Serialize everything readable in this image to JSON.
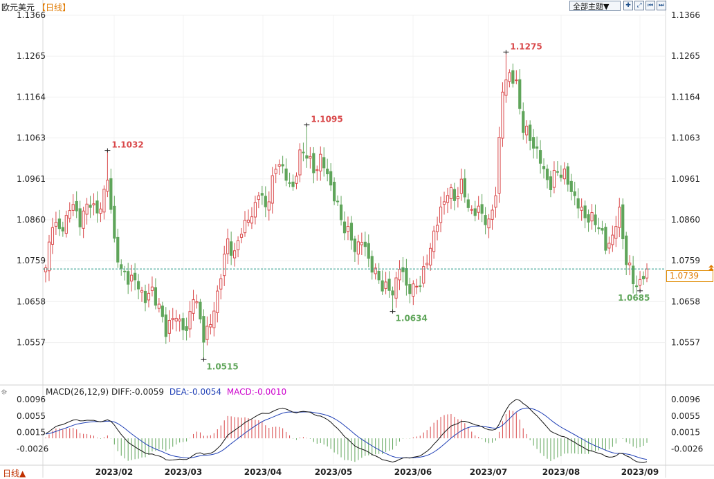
{
  "header": {
    "title": "欧元美元",
    "period": "【日线】",
    "theme_button": "全部主题▼",
    "toolbar_icons": [
      "crosshair-icon",
      "zoom-in-icon",
      "rewind-icon",
      "forward-icon"
    ]
  },
  "footer": {
    "period_button": "日线▲"
  },
  "colors": {
    "up": "#d9484a",
    "down": "#5fa55a",
    "current_line": "#2a9a8a",
    "diff_line": "#111111",
    "dea_line": "#1f3fb5",
    "macd_label": "#cc00cc",
    "tag": "#e07a00"
  },
  "chart_data": {
    "type": "candlestick",
    "instrument": "欧元美元",
    "y_ticks": [
      "1.1366",
      "1.1265",
      "1.1164",
      "1.1063",
      "1.0961",
      "1.0860",
      "1.0759",
      "1.0658",
      "1.0557"
    ],
    "ylim": [
      1.0466,
      1.1366
    ],
    "x_labels": [
      "2023/02",
      "2023/03",
      "2023/04",
      "2023/05",
      "2023/06",
      "2023/07",
      "2023/08",
      "2023/09"
    ],
    "current_price": "1.0739",
    "annotations": [
      {
        "label": "1.1032",
        "value": 1.1032,
        "type": "high",
        "bar": 18
      },
      {
        "label": "1.0515",
        "value": 1.0515,
        "type": "low",
        "bar": 46
      },
      {
        "label": "1.1095",
        "value": 1.1095,
        "type": "high",
        "bar": 76
      },
      {
        "label": "1.0634",
        "value": 1.0634,
        "type": "low",
        "bar": 101
      },
      {
        "label": "1.1275",
        "value": 1.1275,
        "type": "high",
        "bar": 134
      },
      {
        "label": "1.0685",
        "value": 1.0685,
        "type": "low",
        "bar": 173
      }
    ],
    "pivots": [
      [
        0,
        1.0735
      ],
      [
        2,
        1.086
      ],
      [
        4,
        1.083
      ],
      [
        8,
        1.09
      ],
      [
        10,
        1.0855
      ],
      [
        13,
        1.091
      ],
      [
        15,
        1.087
      ],
      [
        18,
        1.096
      ],
      [
        20,
        1.081
      ],
      [
        22,
        1.073
      ],
      [
        24,
        1.072
      ],
      [
        27,
        1.07
      ],
      [
        29,
        1.066
      ],
      [
        31,
        1.069
      ],
      [
        35,
        1.059
      ],
      [
        38,
        1.0625
      ],
      [
        41,
        1.058
      ],
      [
        43,
        1.068
      ],
      [
        46,
        1.0575
      ],
      [
        48,
        1.06
      ],
      [
        50,
        1.068
      ],
      [
        53,
        1.081
      ],
      [
        55,
        1.077
      ],
      [
        57,
        1.084
      ],
      [
        60,
        1.087
      ],
      [
        62,
        1.093
      ],
      [
        64,
        1.089
      ],
      [
        66,
        1.0955
      ],
      [
        68,
        1.101
      ],
      [
        70,
        1.096
      ],
      [
        72,
        1.094
      ],
      [
        74,
        1.102
      ],
      [
        76,
        1.103
      ],
      [
        78,
        1.0975
      ],
      [
        80,
        1.1015
      ],
      [
        82,
        1.097
      ],
      [
        84,
        1.092
      ],
      [
        86,
        1.086
      ],
      [
        88,
        1.083
      ],
      [
        90,
        1.079
      ],
      [
        92,
        1.081
      ],
      [
        94,
        1.0765
      ],
      [
        96,
        1.0725
      ],
      [
        98,
        1.07
      ],
      [
        101,
        1.068
      ],
      [
        103,
        1.0745
      ],
      [
        105,
        1.07
      ],
      [
        107,
        1.0685
      ],
      [
        109,
        1.071
      ],
      [
        111,
        1.0755
      ],
      [
        113,
        1.083
      ],
      [
        115,
        1.088
      ],
      [
        117,
        1.0935
      ],
      [
        119,
        1.091
      ],
      [
        121,
        1.095
      ],
      [
        123,
        1.089
      ],
      [
        125,
        1.088
      ],
      [
        127,
        1.088
      ],
      [
        129,
        1.0845
      ],
      [
        131,
        1.093
      ],
      [
        133,
        1.118
      ],
      [
        135,
        1.1225
      ],
      [
        137,
        1.119
      ],
      [
        139,
        1.109
      ],
      [
        141,
        1.106
      ],
      [
        143,
        1.103
      ],
      [
        145,
        1.098
      ],
      [
        147,
        1.0945
      ],
      [
        149,
        1.0985
      ],
      [
        151,
        1.097
      ],
      [
        153,
        1.0935
      ],
      [
        155,
        1.0895
      ],
      [
        157,
        1.087
      ],
      [
        159,
        1.086
      ],
      [
        161,
        1.085
      ],
      [
        163,
        1.079
      ],
      [
        165,
        1.082
      ],
      [
        167,
        1.088
      ],
      [
        169,
        1.076
      ],
      [
        171,
        1.071
      ],
      [
        173,
        1.07
      ],
      [
        175,
        1.0739
      ]
    ]
  },
  "macd": {
    "label": "MACD(26,12,9)",
    "diff_label": "DIFF:-0.0059",
    "dea_label": "DEA:-0.0054",
    "macd_label": "MACD:-0.0010",
    "y_ticks": [
      "0.0096",
      "0.0055",
      "0.0015",
      "-0.0026"
    ],
    "ylim": [
      -0.0062,
      0.011
    ]
  }
}
